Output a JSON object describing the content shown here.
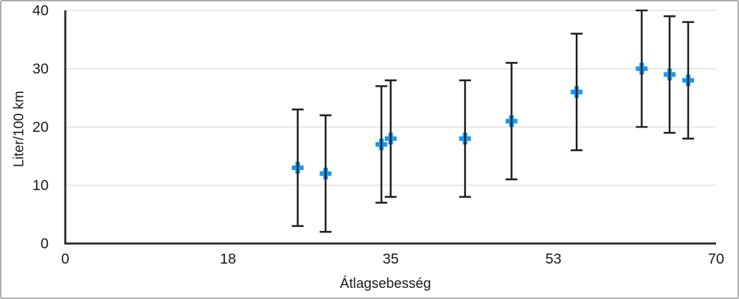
{
  "window": {
    "background_color": "#ffffff",
    "border_color": "#ababab"
  },
  "chart_data": {
    "type": "scatter",
    "title": "",
    "xlabel": "Átlagsebesség",
    "ylabel": "Liter/100 km",
    "xlim": [
      0,
      70
    ],
    "ylim": [
      0,
      40
    ],
    "x_ticks": {
      "values": [
        0,
        17.5,
        35,
        52.5,
        70
      ],
      "labels": [
        "0",
        "18",
        "35",
        "53",
        "70"
      ]
    },
    "y_ticks": {
      "values": [
        0,
        10,
        20,
        30,
        40
      ],
      "labels": [
        "0",
        "10",
        "20",
        "30",
        "40"
      ]
    },
    "grid": "horizontal-only",
    "legend": "none",
    "style": {
      "marker_shape": "plus",
      "marker_color": "#1699f2",
      "error_bar_color": "#1d1d1f",
      "axis_color": "#2b2b2b",
      "grid_color": "#e0e0e0",
      "text_color": "#1a1a1a"
    },
    "series": [
      {
        "name": "Liter/100 km",
        "points": [
          {
            "x": 25,
            "y": 13,
            "error_plus": 10,
            "error_minus": 10
          },
          {
            "x": 28,
            "y": 12,
            "error_plus": 10,
            "error_minus": 10
          },
          {
            "x": 34,
            "y": 17,
            "error_plus": 10,
            "error_minus": 10
          },
          {
            "x": 35,
            "y": 18,
            "error_plus": 10,
            "error_minus": 10
          },
          {
            "x": 43,
            "y": 18,
            "error_plus": 10,
            "error_minus": 10
          },
          {
            "x": 48,
            "y": 21,
            "error_plus": 10,
            "error_minus": 10
          },
          {
            "x": 55,
            "y": 26,
            "error_plus": 10,
            "error_minus": 10
          },
          {
            "x": 62,
            "y": 30,
            "error_plus": 10,
            "error_minus": 10
          },
          {
            "x": 65,
            "y": 29,
            "error_plus": 10,
            "error_minus": 10
          },
          {
            "x": 67,
            "y": 28,
            "error_plus": 10,
            "error_minus": 10
          }
        ]
      }
    ]
  }
}
